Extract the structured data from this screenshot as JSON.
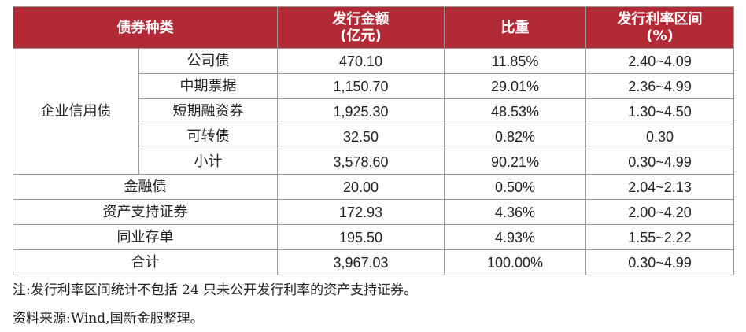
{
  "table": {
    "header": {
      "category": "债券种类",
      "amount_line1": "发行金额",
      "amount_line2": "(亿元)",
      "share": "比重",
      "rate_line1": "发行利率区间",
      "rate_line2": "(%)"
    },
    "group_label": "企业信用债",
    "group_rows": [
      {
        "name": "公司债",
        "amount": "470.10",
        "share": "11.85%",
        "rate": "2.40~4.09"
      },
      {
        "name": "中期票据",
        "amount": "1,150.70",
        "share": "29.01%",
        "rate": "2.36~4.99"
      },
      {
        "name": "短期融资券",
        "amount": "1,925.30",
        "share": "48.53%",
        "rate": "1.30~4.50"
      },
      {
        "name": "可转债",
        "amount": "32.50",
        "share": "0.82%",
        "rate": "0.30"
      },
      {
        "name": "小计",
        "amount": "3,578.60",
        "share": "90.21%",
        "rate": "0.30~4.99"
      }
    ],
    "other_rows": [
      {
        "name": "金融债",
        "amount": "20.00",
        "share": "0.50%",
        "rate": "2.04~2.13"
      },
      {
        "name": "资产支持证券",
        "amount": "172.93",
        "share": "4.36%",
        "rate": "2.00~4.20"
      },
      {
        "name": "同业存单",
        "amount": "195.50",
        "share": "4.93%",
        "rate": "1.55~2.22"
      },
      {
        "name": "合计",
        "amount": "3,967.03",
        "share": "100.00%",
        "rate": "0.30~4.99"
      }
    ],
    "header_color": "#b12a35"
  },
  "notes": {
    "note": "注:发行利率区间统计不包括 24 只未公开发行利率的资产支持证券。",
    "source": "资料来源:Wind,国新金服整理。"
  }
}
